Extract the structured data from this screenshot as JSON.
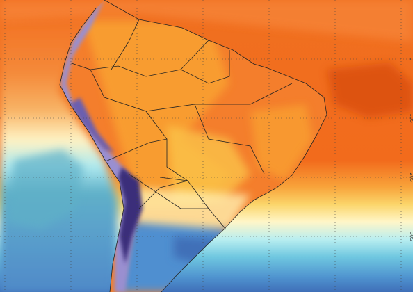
{
  "map": {
    "lat_labels": [
      "0",
      "10S",
      "20S",
      "30S"
    ]
  }
}
